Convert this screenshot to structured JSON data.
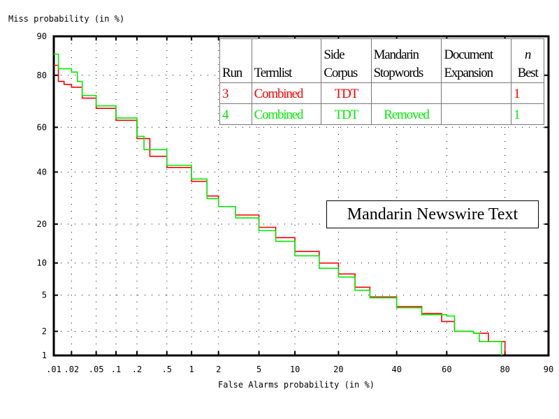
{
  "chart_data": {
    "type": "line",
    "title": "",
    "xlabel": "False Alarms probability (in %)",
    "ylabel": "Miss probability (in %)",
    "x_scale": "normal-deviate",
    "y_scale": "normal-deviate",
    "xlim": [
      0.01,
      90
    ],
    "ylim": [
      1,
      90
    ],
    "x_ticks": [
      ".01",
      ".02",
      ".05",
      ".1",
      ".2",
      ".5",
      "1",
      "2",
      "5",
      "10",
      "20",
      "40",
      "60",
      "80",
      "90"
    ],
    "x_tick_values": [
      0.01,
      0.02,
      0.05,
      0.1,
      0.2,
      0.5,
      1,
      2,
      5,
      10,
      20,
      40,
      60,
      80,
      90
    ],
    "y_ticks": [
      "1",
      "2",
      "5",
      "10",
      "20",
      "40",
      "60",
      "80",
      "90"
    ],
    "y_tick_values": [
      1,
      2,
      5,
      10,
      20,
      40,
      60,
      80,
      90
    ],
    "grid": true,
    "annotation": "Mandarin Newswire Text",
    "series": [
      {
        "name": "Run 3",
        "color": "#ff0000",
        "points": [
          [
            0.01,
            83
          ],
          [
            0.012,
            78
          ],
          [
            0.015,
            77
          ],
          [
            0.02,
            76
          ],
          [
            0.03,
            72
          ],
          [
            0.05,
            68
          ],
          [
            0.1,
            63
          ],
          [
            0.2,
            55
          ],
          [
            0.3,
            47
          ],
          [
            0.5,
            42
          ],
          [
            1,
            36
          ],
          [
            1.5,
            30
          ],
          [
            2,
            26
          ],
          [
            3,
            23
          ],
          [
            5,
            19
          ],
          [
            7,
            16
          ],
          [
            10,
            12.5
          ],
          [
            15,
            10
          ],
          [
            20,
            8
          ],
          [
            25,
            6
          ],
          [
            30,
            4.8
          ],
          [
            40,
            3.8
          ],
          [
            50,
            3.2
          ],
          [
            58,
            2.6
          ],
          [
            63,
            2
          ],
          [
            70,
            1.9
          ],
          [
            75,
            1.5
          ],
          [
            80,
            1.05
          ]
        ]
      },
      {
        "name": "Run 4",
        "color": "#00ee00",
        "points": [
          [
            0.01,
            86
          ],
          [
            0.012,
            82
          ],
          [
            0.02,
            81
          ],
          [
            0.025,
            78
          ],
          [
            0.03,
            73
          ],
          [
            0.05,
            69
          ],
          [
            0.1,
            64
          ],
          [
            0.2,
            56
          ],
          [
            0.25,
            50
          ],
          [
            0.5,
            43
          ],
          [
            1,
            37
          ],
          [
            1.5,
            29
          ],
          [
            2,
            26
          ],
          [
            3,
            22
          ],
          [
            5,
            18
          ],
          [
            7,
            15
          ],
          [
            10,
            11.5
          ],
          [
            15,
            9
          ],
          [
            20,
            7.5
          ],
          [
            25,
            5.6
          ],
          [
            30,
            4.7
          ],
          [
            40,
            3.7
          ],
          [
            50,
            3.1
          ],
          [
            60,
            3
          ],
          [
            63,
            2
          ],
          [
            70,
            1.9
          ],
          [
            72,
            1.5
          ],
          [
            79,
            1
          ]
        ]
      }
    ]
  },
  "legend_table": {
    "headers": [
      [
        "",
        "Run"
      ],
      [
        "",
        "Termlist"
      ],
      [
        "Side",
        "Corpus"
      ],
      [
        "Mandarin",
        "Stopwords"
      ],
      [
        "Document",
        "Expansion"
      ],
      [
        "n",
        "Best"
      ]
    ],
    "rows": [
      {
        "color": "#ff0000",
        "cells": [
          "3",
          "Combined",
          "TDT",
          "",
          "",
          "1"
        ]
      },
      {
        "color": "#00ee00",
        "cells": [
          "4",
          "Combined",
          "TDT",
          "Removed",
          "",
          "1"
        ]
      }
    ]
  }
}
